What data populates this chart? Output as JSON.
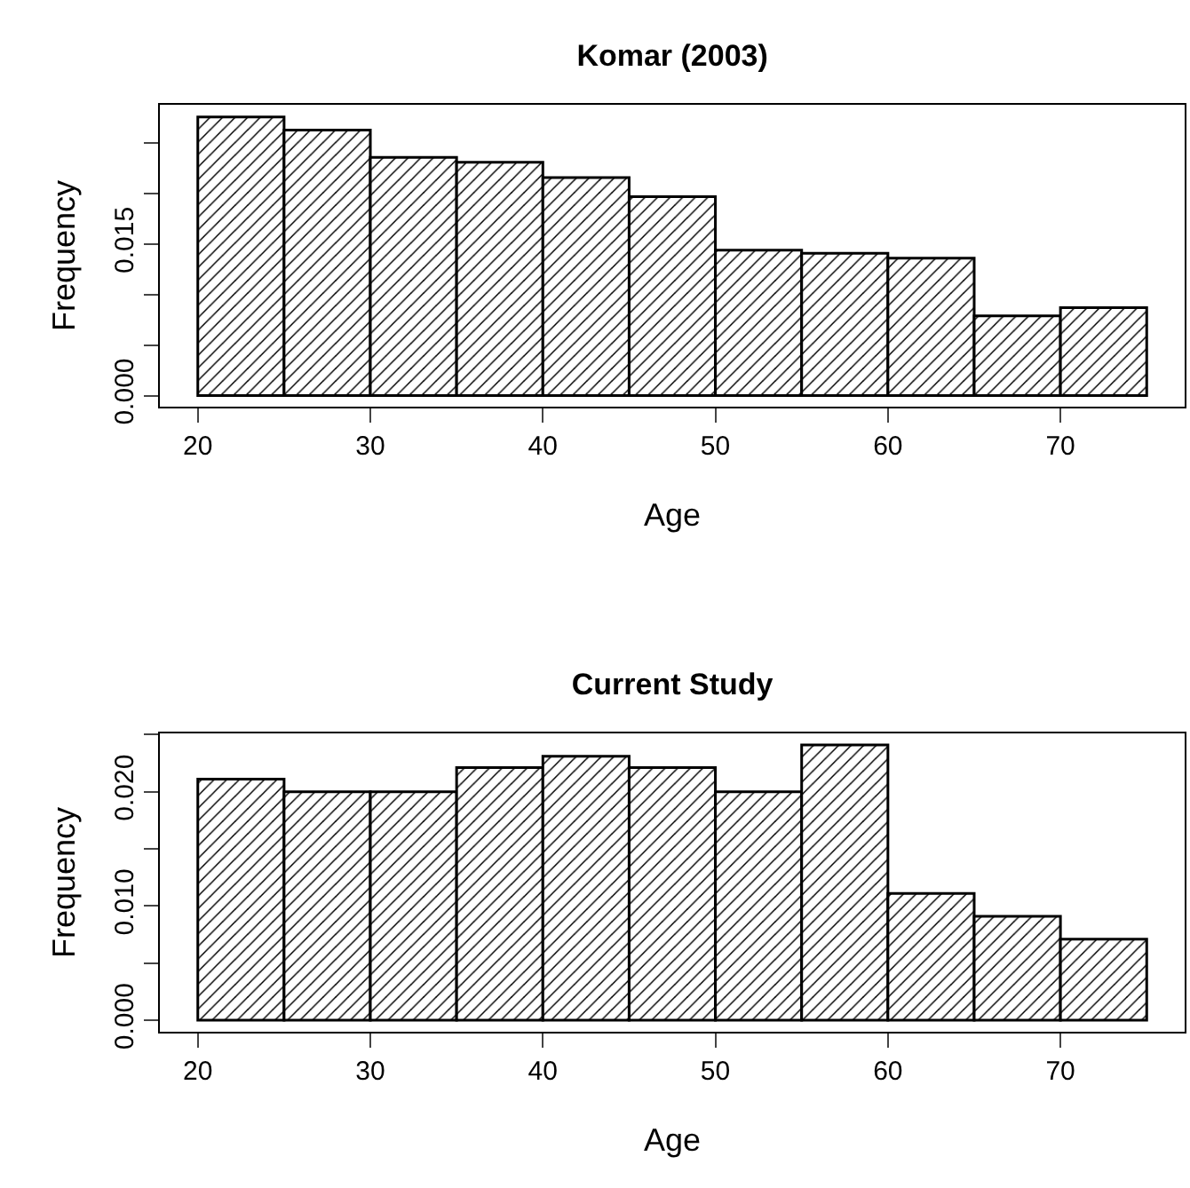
{
  "chart_data": [
    {
      "type": "histogram",
      "title": "Komar (2003)",
      "xlabel": "Age",
      "ylabel": "Frequency",
      "color": "#000000",
      "bins": [
        20,
        25,
        30,
        35,
        40,
        45,
        50,
        55,
        60,
        65,
        70,
        75
      ],
      "values": [
        0.0276,
        0.0263,
        0.0236,
        0.0231,
        0.0216,
        0.0197,
        0.0144,
        0.0141,
        0.0136,
        0.0079,
        0.0087
      ],
      "xlim": [
        17.8,
        77.2
      ],
      "xticks": [
        20,
        30,
        40,
        50,
        60,
        70
      ],
      "ylim": [
        -0.0011,
        0.0288
      ],
      "yticks": [
        {
          "value": 0,
          "label": "0.000"
        },
        {
          "value": 0.005,
          "label": null
        },
        {
          "value": 0.01,
          "label": null
        },
        {
          "value": 0.015,
          "label": "0.015"
        },
        {
          "value": 0.02,
          "label": null
        },
        {
          "value": 0.025,
          "label": null
        }
      ],
      "grid": false
    },
    {
      "type": "histogram",
      "title": "Current Study",
      "xlabel": "Age",
      "ylabel": "Frequency",
      "color": "#000000",
      "bins": [
        20,
        25,
        30,
        35,
        40,
        45,
        50,
        55,
        60,
        65,
        70,
        75
      ],
      "values": [
        0.0211,
        0.02,
        0.02,
        0.0221,
        0.0231,
        0.0221,
        0.02,
        0.0241,
        0.0111,
        0.0091,
        0.0071
      ],
      "xlim": [
        17.8,
        77.2
      ],
      "xticks": [
        20,
        30,
        40,
        50,
        60,
        70
      ],
      "ylim": [
        -0.001,
        0.0251
      ],
      "yticks": [
        {
          "value": 0,
          "label": "0.000"
        },
        {
          "value": 0.005,
          "label": null
        },
        {
          "value": 0.01,
          "label": "0.010"
        },
        {
          "value": 0.015,
          "label": null
        },
        {
          "value": 0.02,
          "label": "0.020"
        },
        {
          "value": 0.025,
          "label": null
        }
      ],
      "grid": false
    }
  ]
}
